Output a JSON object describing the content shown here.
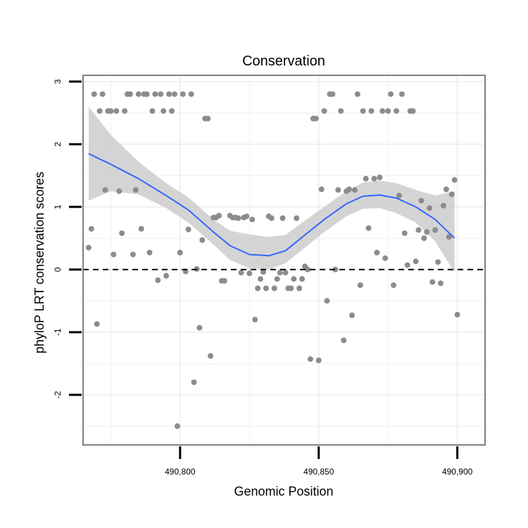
{
  "chart_data": {
    "type": "scatter",
    "title": "Conservation",
    "xlabel": "Genomic Position",
    "ylabel": "phyloP LRT conservation scores",
    "xlim": [
      490765,
      490910
    ],
    "ylim": [
      -2.8,
      3.1
    ],
    "xticks": [
      490800,
      490850,
      490900
    ],
    "xtick_labels": [
      "490,800",
      "490,850",
      "490,900"
    ],
    "yticks": [
      -2,
      -1,
      0,
      1,
      2,
      3
    ],
    "ytick_labels": [
      "-2",
      "-1",
      "0",
      "1",
      "2",
      "3"
    ],
    "grid": true,
    "reference_line": {
      "y": 0,
      "style": "dashed"
    },
    "colors": {
      "points": "#8c8c8c",
      "smooth_line": "#3366ff",
      "ribbon": "#cccccc",
      "panel_border": "#808080",
      "grid": "#f0f0f0"
    },
    "points": [
      [
        490767,
        0.35
      ],
      [
        490768,
        0.65
      ],
      [
        490769,
        2.8
      ],
      [
        490770,
        -0.87
      ],
      [
        490771,
        2.53
      ],
      [
        490772,
        2.8
      ],
      [
        490773,
        1.27
      ],
      [
        490774,
        2.53
      ],
      [
        490775,
        2.53
      ],
      [
        490776,
        0.24
      ],
      [
        490777,
        2.53
      ],
      [
        490778,
        1.25
      ],
      [
        490779,
        0.58
      ],
      [
        490780,
        2.53
      ],
      [
        490781,
        2.8
      ],
      [
        490782,
        2.8
      ],
      [
        490783,
        0.24
      ],
      [
        490784,
        1.27
      ],
      [
        490785,
        2.8
      ],
      [
        490786,
        0.65
      ],
      [
        490787,
        2.8
      ],
      [
        490788,
        2.8
      ],
      [
        490789,
        0.27
      ],
      [
        490790,
        2.53
      ],
      [
        490791,
        2.8
      ],
      [
        490792,
        -0.17
      ],
      [
        490793,
        2.8
      ],
      [
        490794,
        2.53
      ],
      [
        490795,
        -0.1
      ],
      [
        490796,
        2.8
      ],
      [
        490797,
        2.53
      ],
      [
        490798,
        2.8
      ],
      [
        490799,
        -2.5
      ],
      [
        490800,
        0.27
      ],
      [
        490801,
        2.8
      ],
      [
        490802,
        -0.03
      ],
      [
        490803,
        0.64
      ],
      [
        490804,
        2.8
      ],
      [
        490805,
        -1.8
      ],
      [
        490806,
        0.01
      ],
      [
        490807,
        -0.93
      ],
      [
        490808,
        0.47
      ],
      [
        490809,
        2.41
      ],
      [
        490810,
        2.41
      ],
      [
        490811,
        -1.38
      ],
      [
        490812,
        0.83
      ],
      [
        490813,
        0.83
      ],
      [
        490814,
        0.86
      ],
      [
        490815,
        -0.18
      ],
      [
        490816,
        -0.18
      ],
      [
        490818,
        0.86
      ],
      [
        490819,
        0.83
      ],
      [
        490820,
        0.83
      ],
      [
        490821,
        0.82
      ],
      [
        490822,
        -0.05
      ],
      [
        490823,
        0.83
      ],
      [
        490824,
        0.85
      ],
      [
        490825,
        -0.06
      ],
      [
        490826,
        0.8
      ],
      [
        490827,
        -0.8
      ],
      [
        490828,
        -0.3
      ],
      [
        490829,
        -0.15
      ],
      [
        490830,
        -0.04
      ],
      [
        490831,
        -0.3
      ],
      [
        490832,
        0.85
      ],
      [
        490833,
        0.82
      ],
      [
        490834,
        -0.3
      ],
      [
        490835,
        -0.15
      ],
      [
        490836,
        -0.05
      ],
      [
        490837,
        0.82
      ],
      [
        490838,
        -0.05
      ],
      [
        490839,
        -0.3
      ],
      [
        490840,
        -0.3
      ],
      [
        490841,
        -0.15
      ],
      [
        490842,
        0.82
      ],
      [
        490843,
        -0.3
      ],
      [
        490844,
        -0.15
      ],
      [
        490845,
        0.05
      ],
      [
        490846,
        0.0
      ],
      [
        490847,
        -1.43
      ],
      [
        490848,
        2.41
      ],
      [
        490849,
        2.41
      ],
      [
        490850,
        -1.45
      ],
      [
        490851,
        1.28
      ],
      [
        490852,
        2.53
      ],
      [
        490853,
        -0.5
      ],
      [
        490854,
        2.8
      ],
      [
        490855,
        2.8
      ],
      [
        490856,
        0.0
      ],
      [
        490857,
        1.27
      ],
      [
        490858,
        2.53
      ],
      [
        490859,
        -1.13
      ],
      [
        490860,
        1.25
      ],
      [
        490861,
        1.28
      ],
      [
        490862,
        -0.73
      ],
      [
        490863,
        1.27
      ],
      [
        490864,
        2.8
      ],
      [
        490865,
        -0.25
      ],
      [
        490866,
        2.53
      ],
      [
        490867,
        1.45
      ],
      [
        490868,
        0.66
      ],
      [
        490869,
        2.53
      ],
      [
        490870,
        1.45
      ],
      [
        490871,
        0.27
      ],
      [
        490872,
        1.47
      ],
      [
        490873,
        2.53
      ],
      [
        490874,
        0.18
      ],
      [
        490875,
        2.53
      ],
      [
        490876,
        2.8
      ],
      [
        490877,
        -0.25
      ],
      [
        490878,
        2.53
      ],
      [
        490879,
        1.18
      ],
      [
        490880,
        2.8
      ],
      [
        490881,
        0.58
      ],
      [
        490882,
        0.07
      ],
      [
        490883,
        2.53
      ],
      [
        490884,
        2.53
      ],
      [
        490885,
        0.13
      ],
      [
        490886,
        0.63
      ],
      [
        490887,
        1.1
      ],
      [
        490888,
        0.5
      ],
      [
        490889,
        0.6
      ],
      [
        490890,
        0.98
      ],
      [
        490891,
        -0.2
      ],
      [
        490892,
        0.63
      ],
      [
        490893,
        0.12
      ],
      [
        490894,
        -0.22
      ],
      [
        490895,
        1.02
      ],
      [
        490896,
        1.28
      ],
      [
        490897,
        0.52
      ],
      [
        490898,
        1.2
      ],
      [
        490899,
        1.43
      ],
      [
        490900,
        -0.72
      ]
    ],
    "smooth_line": {
      "x": [
        490767,
        490775,
        490785,
        490795,
        490803,
        490812,
        490818,
        490825,
        490832,
        490838,
        490845,
        490852,
        490860,
        490866,
        490872,
        490878,
        490885,
        490892,
        490899
      ],
      "y": [
        1.85,
        1.68,
        1.45,
        1.18,
        0.95,
        0.6,
        0.38,
        0.24,
        0.22,
        0.3,
        0.55,
        0.8,
        1.05,
        1.17,
        1.19,
        1.14,
        1.0,
        0.8,
        0.5
      ]
    },
    "ribbon": {
      "x": [
        490767,
        490775,
        490785,
        490795,
        490803,
        490812,
        490818,
        490825,
        490832,
        490838,
        490845,
        490852,
        490860,
        490866,
        490872,
        490878,
        490885,
        490892,
        490899
      ],
      "lower": [
        1.1,
        1.25,
        1.2,
        0.98,
        0.75,
        0.4,
        0.15,
        0.02,
        0.0,
        0.1,
        0.35,
        0.6,
        0.85,
        0.97,
        0.98,
        0.9,
        0.75,
        0.45,
        -0.05
      ],
      "upper": [
        2.6,
        2.15,
        1.72,
        1.38,
        1.15,
        0.8,
        0.62,
        0.56,
        0.52,
        0.55,
        0.78,
        1.0,
        1.25,
        1.39,
        1.42,
        1.38,
        1.27,
        1.18,
        1.25
      ]
    }
  }
}
